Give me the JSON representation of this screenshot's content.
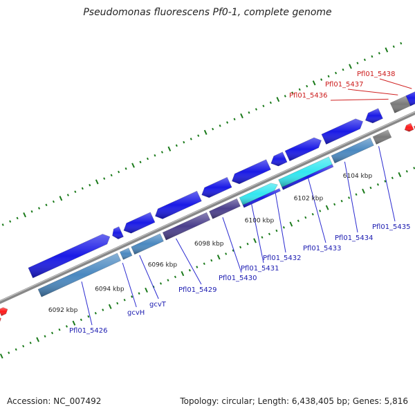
{
  "title": "Pseudomonas fluorescens Pf0-1, complete genome",
  "footer": {
    "accession": "Accession: NC_007492",
    "topology": "Topology: circular; Length: 6,438,405 bp; Genes: 5,816"
  },
  "colors": {
    "gene_blue": "#1a1ae6",
    "gene_lightblue": "#4a88c0",
    "gene_purple": "#4b3f8c",
    "gene_cyan": "#33e6f0",
    "gene_gray": "#7a7a7a",
    "gene_red": "#ff1a1a",
    "gene_green": "#88cc22",
    "backbone": "#888888",
    "tick": "#1a7a1a",
    "label_blue": "#1a1ab0",
    "label_red": "#cc1a1a",
    "leader_blue": "#2a2ad0",
    "leader_red": "#d02020"
  },
  "scale_labels": [
    {
      "text": "6092 kbp"
    },
    {
      "text": "6094 kbp"
    },
    {
      "text": "6096 kbp"
    },
    {
      "text": "6098 kbp"
    },
    {
      "text": "6100 kbp"
    },
    {
      "text": "6102 kbp"
    },
    {
      "text": "6104 kbp"
    }
  ],
  "gene_labels": [
    {
      "text": "Pfl01_5426",
      "color": "blue"
    },
    {
      "text": "gcvH",
      "color": "blue"
    },
    {
      "text": "gcvT",
      "color": "blue"
    },
    {
      "text": "Pfl01_5429",
      "color": "blue"
    },
    {
      "text": "Pfl01_5430",
      "color": "blue"
    },
    {
      "text": "Pfl01_5431",
      "color": "blue"
    },
    {
      "text": "Pfl01_5432",
      "color": "blue"
    },
    {
      "text": "Pfl01_5433",
      "color": "blue"
    },
    {
      "text": "Pfl01_5434",
      "color": "blue"
    },
    {
      "text": "Pfl01_5435",
      "color": "blue"
    },
    {
      "text": "Pfl01_5436",
      "color": "red"
    },
    {
      "text": "Pfl01_5437",
      "color": "red"
    },
    {
      "text": "Pfl01_5438",
      "color": "red"
    }
  ]
}
